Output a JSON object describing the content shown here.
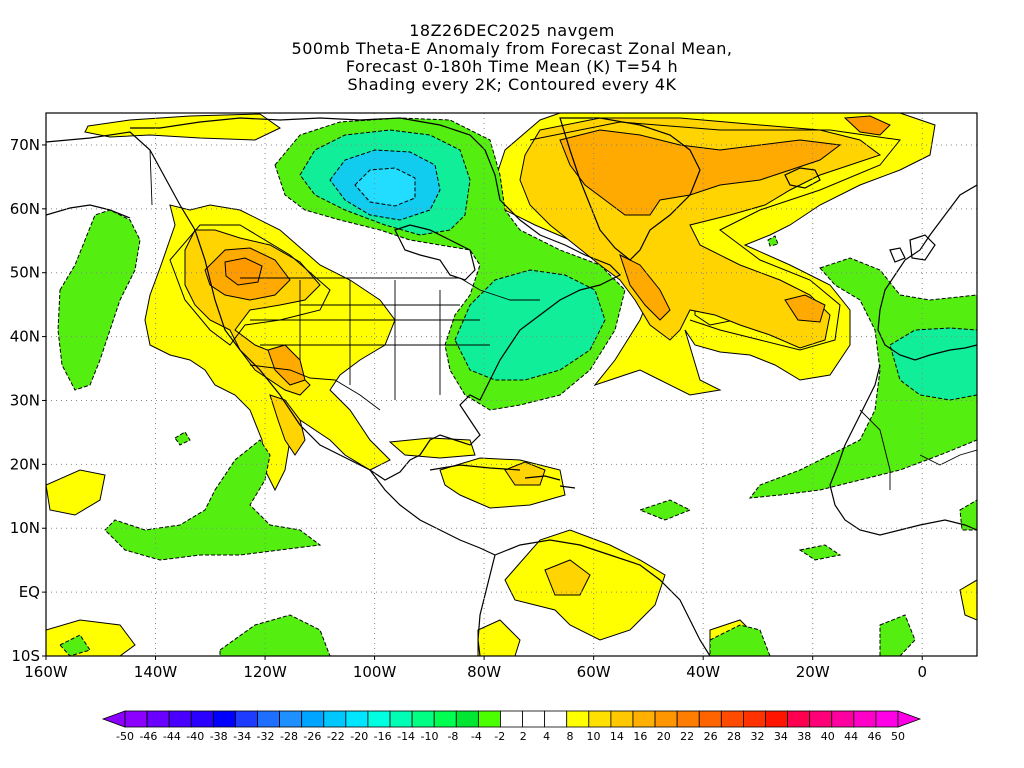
{
  "title_lines": [
    "18Z26DEC2025 navgem",
    "500mb Theta-E Anomaly from Forecast Zonal Mean,",
    "Forecast 0-180h Time Mean (K) T=54 h",
    "Shading every 2K; Contoured every 4K"
  ],
  "map": {
    "region": "North Atlantic / North America",
    "lon_range": [
      -160,
      10
    ],
    "lat_range": [
      -10,
      75
    ],
    "lat_ticks": [
      {
        "value": 70,
        "label": "70N"
      },
      {
        "value": 60,
        "label": "60N"
      },
      {
        "value": 50,
        "label": "50N"
      },
      {
        "value": 40,
        "label": "40N"
      },
      {
        "value": 30,
        "label": "30N"
      },
      {
        "value": 20,
        "label": "20N"
      },
      {
        "value": 10,
        "label": "10N"
      },
      {
        "value": 0,
        "label": "EQ"
      },
      {
        "value": -10,
        "label": "10S"
      }
    ],
    "lon_ticks": [
      {
        "value": -160,
        "label": "160W"
      },
      {
        "value": -140,
        "label": "140W"
      },
      {
        "value": -120,
        "label": "120W"
      },
      {
        "value": -100,
        "label": "100W"
      },
      {
        "value": -80,
        "label": "80W"
      },
      {
        "value": -60,
        "label": "60W"
      },
      {
        "value": -40,
        "label": "40W"
      },
      {
        "value": -20,
        "label": "20W"
      },
      {
        "value": 0,
        "label": "0"
      }
    ],
    "grid": "dotted"
  },
  "colorbar": {
    "labels": [
      "-50",
      "-46",
      "-44",
      "-40",
      "-38",
      "-34",
      "-32",
      "-28",
      "-26",
      "-22",
      "-20",
      "-16",
      "-14",
      "-10",
      "-8",
      "-4",
      "-2",
      "2",
      "4",
      "8",
      "10",
      "14",
      "16",
      "20",
      "22",
      "26",
      "28",
      "32",
      "34",
      "38",
      "40",
      "44",
      "46",
      "50"
    ],
    "colors": [
      "#8b00ff",
      "#6a00ff",
      "#4a00ff",
      "#2a00ff",
      "#0000ff",
      "#1e3cff",
      "#1e6eff",
      "#1e90ff",
      "#00a5ff",
      "#00c8ff",
      "#00e6ff",
      "#00ffe0",
      "#00ffb4",
      "#00ff82",
      "#00ff50",
      "#00e632",
      "#4cff00",
      "#ffffff",
      "#ffffff",
      "#ffffff",
      "#ffff00",
      "#ffe000",
      "#ffc800",
      "#ffb000",
      "#ff9600",
      "#ff7d00",
      "#ff6400",
      "#ff4b00",
      "#ff3200",
      "#ff1400",
      "#ff0050",
      "#ff0078",
      "#ff00a0",
      "#ff00c8",
      "#ff00e6"
    ]
  },
  "colors": {
    "weak_negative": "#55ee11",
    "negative": "#11ee99",
    "strong_negative": "#11ccee",
    "weak_positive": "#ffff00",
    "positive": "#ffd400",
    "strong_positive": "#ffaa00",
    "peak_positive": "#ff9900"
  }
}
